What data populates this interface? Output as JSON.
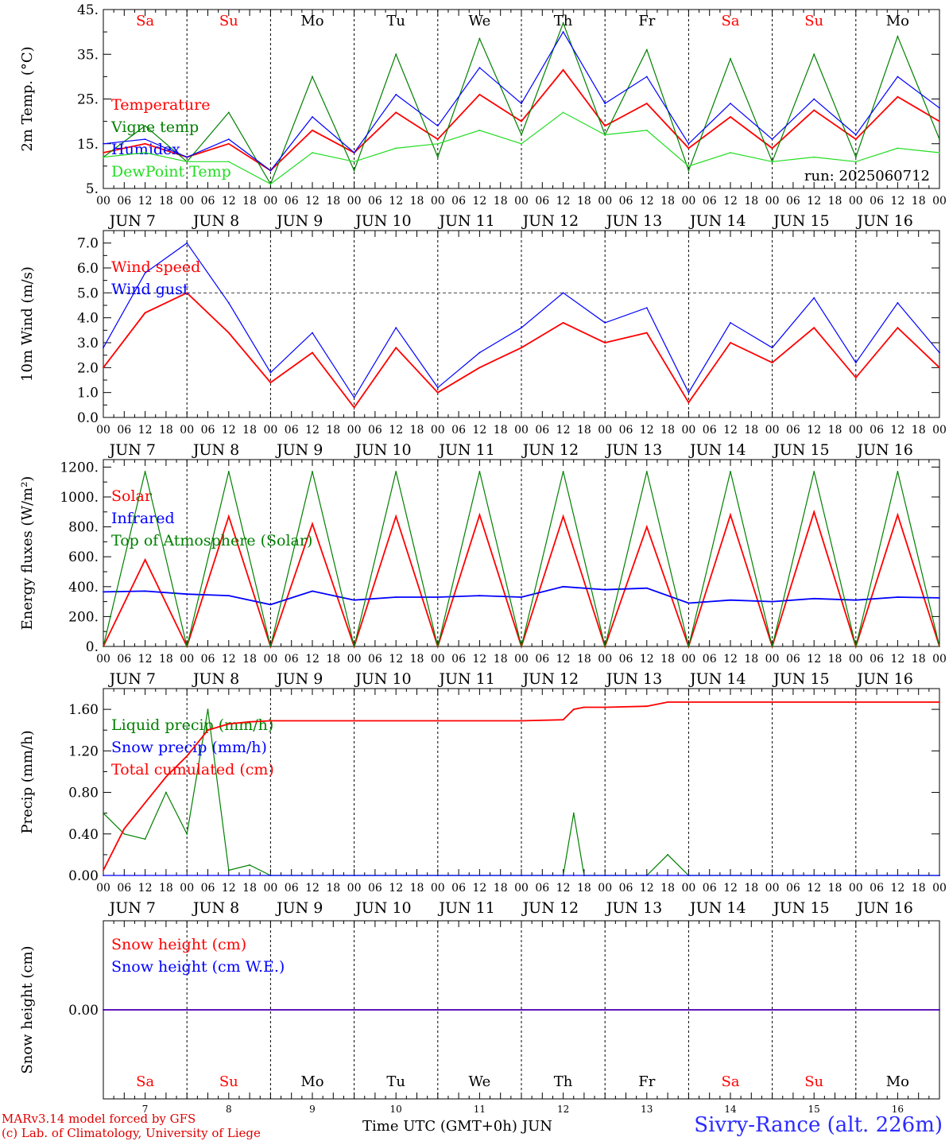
{
  "run_label": "run: 2025060712",
  "hour_ticks": [
    "00",
    "06",
    "12",
    "18"
  ],
  "days": [
    {
      "date": "7",
      "month": "JUN",
      "dow": "Sa",
      "weekend": true
    },
    {
      "date": "8",
      "month": "JUN",
      "dow": "Su",
      "weekend": true
    },
    {
      "date": "9",
      "month": "JUN",
      "dow": "Mo",
      "weekend": false
    },
    {
      "date": "10",
      "month": "JUN",
      "dow": "Tu",
      "weekend": false
    },
    {
      "date": "11",
      "month": "JUN",
      "dow": "We",
      "weekend": false
    },
    {
      "date": "12",
      "month": "JUN",
      "dow": "Th",
      "weekend": false
    },
    {
      "date": "13",
      "month": "JUN",
      "dow": "Fr",
      "weekend": false
    },
    {
      "date": "14",
      "month": "JUN",
      "dow": "Sa",
      "weekend": true
    },
    {
      "date": "15",
      "month": "JUN",
      "dow": "Su",
      "weekend": true
    },
    {
      "date": "16",
      "month": "JUN",
      "dow": "Mo",
      "weekend": false
    }
  ],
  "colors": {
    "red": "#ff0000",
    "green": "#008000",
    "blue": "#0000ff",
    "light_green": "#22dd22",
    "weekend": "#ff0000"
  },
  "chart_data": [
    {
      "type": "line",
      "ylabel": "2m Temp. (°C)",
      "ylim": [
        5,
        45
      ],
      "ytick_values": [
        5,
        15,
        25,
        35,
        45
      ],
      "ytick_labels": [
        "5.",
        "15.",
        "25.",
        "35.",
        "45."
      ],
      "x": [
        "2025-06-07T00",
        "2025-06-07T12",
        "2025-06-08T00",
        "2025-06-08T12",
        "2025-06-09T00",
        "2025-06-09T12",
        "2025-06-10T00",
        "2025-06-10T12",
        "2025-06-11T00",
        "2025-06-11T12",
        "2025-06-12T00",
        "2025-06-12T12",
        "2025-06-13T00",
        "2025-06-13T12",
        "2025-06-14T00",
        "2025-06-14T12",
        "2025-06-15T00",
        "2025-06-15T12",
        "2025-06-16T00",
        "2025-06-16T12",
        "2025-06-17T00"
      ],
      "series": [
        {
          "name": "Temperature",
          "color": "red",
          "values": [
            13,
            15,
            12,
            15,
            9,
            18,
            13,
            22,
            16,
            26,
            20,
            31.5,
            19,
            24,
            14,
            21,
            14,
            22.5,
            16,
            25.5,
            20
          ]
        },
        {
          "name": "Vigne temp",
          "color": "green",
          "values": [
            12,
            19,
            11,
            22,
            6,
            30,
            9,
            35,
            12,
            38.5,
            17,
            42,
            17,
            36,
            9,
            34,
            11,
            35,
            12,
            39,
            16
          ]
        },
        {
          "name": "Humidex",
          "color": "blue",
          "values": [
            15,
            16,
            12,
            16,
            9,
            21,
            13,
            26,
            19,
            32,
            24,
            40,
            24,
            30,
            15,
            24,
            16,
            25,
            17,
            30,
            23
          ]
        },
        {
          "name": "DewPoint Temp",
          "color": "light_green",
          "values": [
            12,
            13,
            11,
            11,
            6,
            13,
            11,
            14,
            15,
            18,
            15,
            22,
            17,
            18,
            10,
            13,
            11,
            12,
            11,
            14,
            13
          ]
        }
      ]
    },
    {
      "type": "line",
      "ylabel": "10m Wind (m/s)",
      "ylim": [
        0,
        7.5
      ],
      "ytick_values": [
        0,
        1,
        2,
        3,
        4,
        5,
        6,
        7
      ],
      "ytick_labels": [
        "0.0",
        "1.0",
        "2.0",
        "3.0",
        "4.0",
        "5.0",
        "6.0",
        "7.0"
      ],
      "reference_line": 5.0,
      "x": [
        "2025-06-07T00",
        "2025-06-07T12",
        "2025-06-08T00",
        "2025-06-08T12",
        "2025-06-09T00",
        "2025-06-09T12",
        "2025-06-10T00",
        "2025-06-10T12",
        "2025-06-11T00",
        "2025-06-11T12",
        "2025-06-12T00",
        "2025-06-12T12",
        "2025-06-13T00",
        "2025-06-13T12",
        "2025-06-14T00",
        "2025-06-14T12",
        "2025-06-15T00",
        "2025-06-15T12",
        "2025-06-16T00",
        "2025-06-16T12",
        "2025-06-17T00"
      ],
      "series": [
        {
          "name": "Wind speed",
          "color": "red",
          "values": [
            2.0,
            4.2,
            5.0,
            3.4,
            1.4,
            2.6,
            0.4,
            2.8,
            1.0,
            2.0,
            2.8,
            3.8,
            3.0,
            3.4,
            0.6,
            3.0,
            2.2,
            3.6,
            1.6,
            3.6,
            2.0
          ]
        },
        {
          "name": "Wind gust",
          "color": "blue",
          "values": [
            2.8,
            5.8,
            7.0,
            4.6,
            1.8,
            3.4,
            0.8,
            3.6,
            1.2,
            2.6,
            3.6,
            5.0,
            3.8,
            4.4,
            1.0,
            3.8,
            2.8,
            4.8,
            2.2,
            4.6,
            2.6
          ]
        }
      ]
    },
    {
      "type": "line",
      "ylabel": "Energy fluxes (W/m²)",
      "ylim": [
        0,
        1250
      ],
      "ytick_values": [
        0,
        200,
        400,
        600,
        800,
        1000,
        1200
      ],
      "ytick_labels": [
        "0.",
        "200.",
        "400.",
        "600.",
        "800.",
        "1000.",
        "1200."
      ],
      "x": [
        "2025-06-07T00",
        "2025-06-07T12",
        "2025-06-08T00",
        "2025-06-08T12",
        "2025-06-09T00",
        "2025-06-09T12",
        "2025-06-10T00",
        "2025-06-10T12",
        "2025-06-11T00",
        "2025-06-11T12",
        "2025-06-12T00",
        "2025-06-12T12",
        "2025-06-13T00",
        "2025-06-13T12",
        "2025-06-14T00",
        "2025-06-14T12",
        "2025-06-15T00",
        "2025-06-15T12",
        "2025-06-16T00",
        "2025-06-16T12",
        "2025-06-17T00"
      ],
      "series": [
        {
          "name": "Solar",
          "color": "red",
          "values": [
            0,
            580,
            0,
            870,
            0,
            820,
            0,
            870,
            0,
            880,
            0,
            870,
            0,
            800,
            0,
            880,
            0,
            900,
            0,
            880,
            0
          ]
        },
        {
          "name": "Infrared",
          "color": "blue",
          "values": [
            365,
            370,
            350,
            340,
            280,
            370,
            310,
            330,
            330,
            340,
            330,
            400,
            380,
            390,
            290,
            310,
            300,
            320,
            310,
            330,
            325
          ]
        },
        {
          "name": "Top of Atmosphere (Solar)",
          "color": "green",
          "values": [
            0,
            1170,
            0,
            1170,
            0,
            1170,
            0,
            1170,
            0,
            1170,
            0,
            1170,
            0,
            1170,
            0,
            1170,
            0,
            1170,
            0,
            1170,
            0
          ]
        }
      ]
    },
    {
      "type": "line",
      "ylabel": "Precip (mm/h)",
      "ylim": [
        0,
        1.8
      ],
      "ytick_values": [
        0,
        0.4,
        0.8,
        1.2,
        1.6
      ],
      "ytick_labels": [
        "0.00",
        "0.40",
        "0.80",
        "1.20",
        "1.60"
      ],
      "x": [
        "2025-06-07T00",
        "2025-06-07T06",
        "2025-06-07T12",
        "2025-06-07T18",
        "2025-06-08T00",
        "2025-06-08T06",
        "2025-06-08T12",
        "2025-06-08T18",
        "2025-06-09T00",
        "2025-06-10T00",
        "2025-06-11T00",
        "2025-06-12T00",
        "2025-06-12T12",
        "2025-06-12T15",
        "2025-06-12T18",
        "2025-06-13T00",
        "2025-06-13T12",
        "2025-06-13T18",
        "2025-06-14T00",
        "2025-06-15T00",
        "2025-06-16T00",
        "2025-06-17T00"
      ],
      "series": [
        {
          "name": "Liquid precip (mm/h)",
          "color": "green",
          "values": [
            0.6,
            0.4,
            0.35,
            0.8,
            0.4,
            1.6,
            0.05,
            0.1,
            0.0,
            0.0,
            0.0,
            0.0,
            0.0,
            0.6,
            0.0,
            0.0,
            0.0,
            0.2,
            0.0,
            0.0,
            0.0,
            0.0
          ]
        },
        {
          "name": "Snow precip (mm/h)",
          "color": "blue",
          "values": [
            0,
            0,
            0,
            0,
            0,
            0,
            0,
            0,
            0,
            0,
            0,
            0,
            0,
            0,
            0,
            0,
            0,
            0,
            0,
            0,
            0,
            0
          ]
        },
        {
          "name": "Total cumulated (cm)",
          "color": "red",
          "values": [
            0.05,
            0.45,
            0.7,
            0.95,
            1.15,
            1.4,
            1.46,
            1.48,
            1.49,
            1.49,
            1.49,
            1.49,
            1.5,
            1.6,
            1.62,
            1.62,
            1.63,
            1.67,
            1.67,
            1.67,
            1.67,
            1.67
          ]
        }
      ]
    },
    {
      "type": "line",
      "ylabel": "Snow height (cm)",
      "ylim": [
        -1,
        1
      ],
      "ytick_values": [
        0
      ],
      "ytick_labels": [
        "0.00"
      ],
      "x": [
        "2025-06-07T00",
        "2025-06-17T00"
      ],
      "series": [
        {
          "name": "Snow height (cm)",
          "color": "red",
          "values": [
            0,
            0
          ]
        },
        {
          "name": "Snow height (cm W.E.)",
          "color": "blue",
          "values": [
            0,
            0
          ]
        }
      ]
    }
  ],
  "footer": {
    "model_line": "MARv3.14 model forced by GFS",
    "credit_line": "(c) Lab. of Climatology, University of Liege",
    "axis_title": "Time UTC (GMT+0h)",
    "month": "JUN",
    "station": "Sivry-Rance (alt. 226m)"
  }
}
